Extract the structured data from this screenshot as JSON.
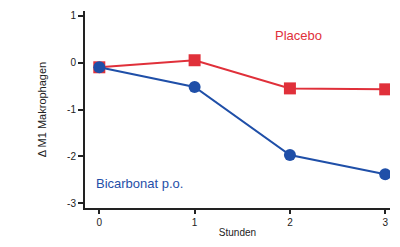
{
  "chart_data": {
    "type": "line",
    "x": [
      0,
      1,
      2,
      3
    ],
    "x_label": "Stunden",
    "y_label": "Δ M1 Makrophagen",
    "xlim": [
      -0.15,
      3.05
    ],
    "xticks": [
      0,
      1,
      2,
      3
    ],
    "ylim": [
      -3.1,
      1.1
    ],
    "yticks": [
      1,
      0,
      -1,
      -2,
      -3
    ],
    "grid": false,
    "series": [
      {
        "name": "Placebo",
        "color": "#e0303a",
        "marker": "square",
        "values": [
          -0.1,
          0.05,
          -0.55,
          -0.57
        ]
      },
      {
        "name": "Bicarbonat p.o.",
        "color": "#1f4fa8",
        "marker": "circle",
        "values": [
          -0.1,
          -0.52,
          -1.97,
          -2.38
        ]
      }
    ]
  }
}
